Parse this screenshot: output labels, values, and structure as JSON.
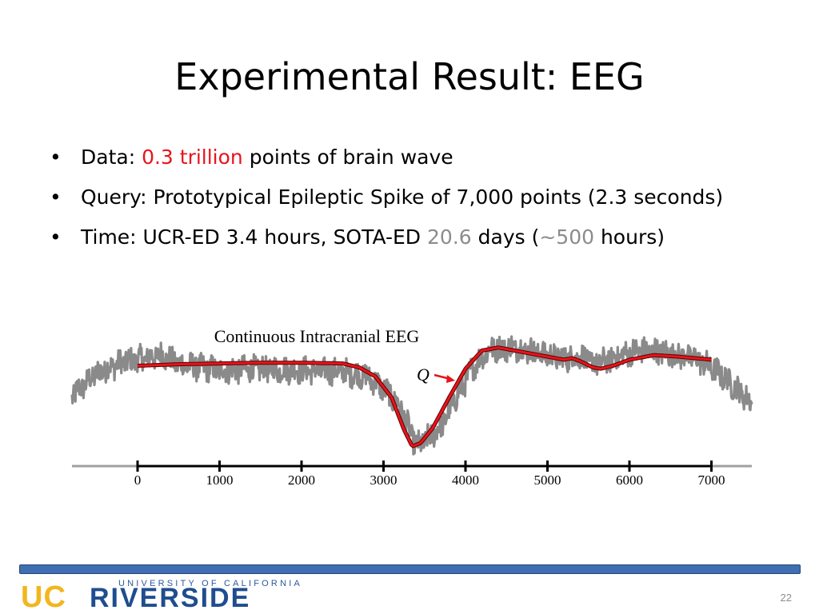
{
  "slide": {
    "title": "Experimental Result: EEG",
    "page_number": "22"
  },
  "bullets": [
    {
      "marker": "•",
      "parts": [
        "Data: ",
        "0.3 trillion",
        " points of brain wave"
      ]
    },
    {
      "marker": "•",
      "parts": [
        "Query: Prototypical Epileptic Spike of 7,000 points (2.3 seconds)"
      ]
    },
    {
      "marker": "•",
      "parts": [
        "Time: UCR-ED 3.4 hours, SOTA-ED ",
        "20.6",
        " days (",
        "~500",
        " hours)"
      ]
    }
  ],
  "colors": {
    "highlight_red": "#e8141b",
    "highlight_gray": "#8c8c8c",
    "signal_gray": "#8a8a8a",
    "query_red": "#e8141b",
    "footer_blue": "#3f6fb0",
    "logo_gold": "#f2b61e",
    "logo_blue": "#1f4d8f"
  },
  "chart_data": {
    "type": "line",
    "title": "Continuous Intracranial EEG",
    "query_label": "Q",
    "xlabel": "",
    "ylabel": "",
    "x_ticks": [
      0,
      1000,
      2000,
      3000,
      4000,
      5000,
      6000,
      7000
    ],
    "xlim": [
      -800,
      7500
    ],
    "ylim": [
      0,
      1
    ],
    "grid": false,
    "series": [
      {
        "role": "eeg_signal",
        "x": [
          -800,
          -500,
          -200,
          100,
          300,
          500,
          1000,
          1500,
          2000,
          2500,
          2800,
          3000,
          3200,
          3300,
          3400,
          3500,
          3700,
          3900,
          4100,
          4300,
          4600,
          5000,
          5200,
          5400,
          5600,
          5800,
          6100,
          6400,
          6800,
          7100,
          7300,
          7500
        ],
        "y": [
          0.55,
          0.7,
          0.77,
          0.8,
          0.82,
          0.76,
          0.72,
          0.73,
          0.72,
          0.71,
          0.68,
          0.6,
          0.48,
          0.35,
          0.22,
          0.25,
          0.35,
          0.55,
          0.75,
          0.86,
          0.87,
          0.82,
          0.8,
          0.81,
          0.76,
          0.8,
          0.85,
          0.84,
          0.8,
          0.7,
          0.6,
          0.5
        ]
      },
      {
        "role": "query",
        "x": [
          0,
          500,
          1000,
          1500,
          2000,
          2500,
          2700,
          2900,
          3100,
          3250,
          3350,
          3450,
          3600,
          3800,
          4000,
          4200,
          4400,
          4600,
          4800,
          5000,
          5200,
          5300,
          5400,
          5550,
          5650,
          5800,
          6000,
          6300,
          6600,
          7000
        ],
        "y": [
          0.75,
          0.76,
          0.765,
          0.77,
          0.77,
          0.765,
          0.74,
          0.68,
          0.54,
          0.33,
          0.22,
          0.24,
          0.34,
          0.54,
          0.73,
          0.85,
          0.87,
          0.85,
          0.83,
          0.81,
          0.79,
          0.8,
          0.78,
          0.74,
          0.73,
          0.75,
          0.79,
          0.82,
          0.81,
          0.79
        ]
      }
    ]
  },
  "logo": {
    "university_line": "UNIVERSITY OF CALIFORNIA",
    "uc": "UC",
    "riverside": "RIVERSIDE"
  }
}
